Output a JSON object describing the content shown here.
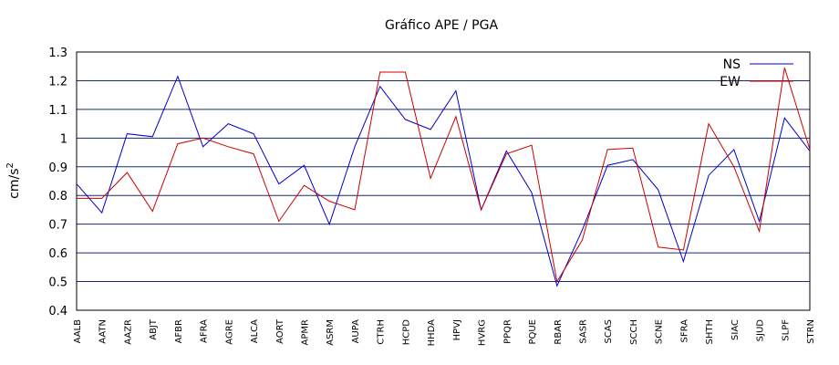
{
  "chart_data": {
    "type": "line",
    "title": "Gráfico  APE / PGA",
    "ylabel": "cm/s",
    "ylabel_sup": "2",
    "ylim": [
      0.4,
      1.3
    ],
    "yticks": [
      0.4,
      0.5,
      0.6,
      0.7,
      0.8,
      0.9,
      1,
      1.1,
      1.2,
      1.3
    ],
    "grid": "horizontal",
    "legend_position": "top-right",
    "categories": [
      "AALB",
      "AATN",
      "AAZR",
      "ABJT",
      "AFBR",
      "AFRA",
      "AGRE",
      "ALCA",
      "AORT",
      "APMR",
      "ASRM",
      "AUPA",
      "CTRH",
      "HCPD",
      "HHDA",
      "HPVJ",
      "HVRG",
      "PPQR",
      "PQUE",
      "RBAR",
      "SASR",
      "SCAS",
      "SCCH",
      "SCNE",
      "SFRA",
      "SHTH",
      "SIAC",
      "SJUD",
      "SLPF",
      "STRN"
    ],
    "series": [
      {
        "name": "NS",
        "color": "#0000cc",
        "values": [
          0.84,
          0.74,
          1.015,
          1.005,
          1.215,
          0.97,
          1.05,
          1.015,
          0.84,
          0.905,
          0.7,
          0.97,
          1.18,
          1.065,
          1.03,
          1.165,
          0.75,
          0.955,
          0.81,
          0.485,
          0.68,
          0.905,
          0.925,
          0.82,
          0.57,
          0.87,
          0.96,
          0.71,
          1.07,
          0.955
        ]
      },
      {
        "name": "EW",
        "color": "#cc0000",
        "values": [
          0.79,
          0.79,
          0.88,
          0.745,
          0.98,
          1.0,
          0.97,
          0.945,
          0.71,
          0.835,
          0.78,
          0.75,
          1.23,
          1.23,
          0.86,
          1.075,
          0.75,
          0.945,
          0.975,
          0.5,
          0.645,
          0.96,
          0.965,
          0.62,
          0.61,
          1.05,
          0.9,
          0.675,
          1.245,
          0.96
        ]
      }
    ]
  }
}
